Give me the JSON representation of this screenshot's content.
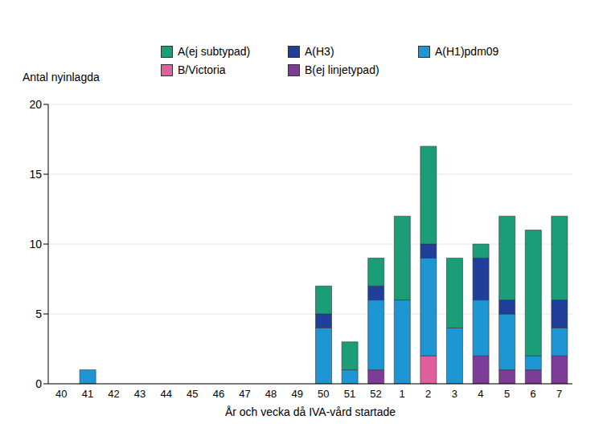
{
  "chart_data": {
    "type": "bar",
    "stacked": true,
    "x_label": "År och vecka då IVA-vård startade",
    "y_label": "Antal nyinlagda",
    "categories": [
      "40",
      "41",
      "42",
      "43",
      "44",
      "45",
      "46",
      "47",
      "48",
      "49",
      "50",
      "51",
      "52",
      "1",
      "2",
      "3",
      "4",
      "5",
      "6",
      "7"
    ],
    "series": [
      {
        "name": "A(ej subtypad)",
        "color": "#1b9e77",
        "values": [
          0,
          0,
          0,
          0,
          0,
          0,
          0,
          0,
          0,
          0,
          2,
          2,
          2,
          6,
          7,
          5,
          1,
          6,
          9,
          6
        ]
      },
      {
        "name": "A(H3)",
        "color": "#203f9a",
        "values": [
          0,
          0,
          0,
          0,
          0,
          0,
          0,
          0,
          0,
          0,
          1,
          0,
          1,
          0,
          1,
          0,
          3,
          1,
          0,
          2
        ]
      },
      {
        "name": "A(H1)pdm09",
        "color": "#1f96d4",
        "values": [
          0,
          1,
          0,
          0,
          0,
          0,
          0,
          0,
          0,
          0,
          4,
          1,
          5,
          6,
          7,
          4,
          4,
          4,
          1,
          2
        ]
      },
      {
        "name": "B/Victoria",
        "color": "#e0609e",
        "values": [
          0,
          0,
          0,
          0,
          0,
          0,
          0,
          0,
          0,
          0,
          0,
          0,
          0,
          0,
          2,
          0,
          0,
          0,
          0,
          0
        ]
      },
      {
        "name": "B(ej linjetypad)",
        "color": "#7d3c98",
        "values": [
          0,
          0,
          0,
          0,
          0,
          0,
          0,
          0,
          0,
          0,
          0,
          0,
          1,
          0,
          0,
          0,
          2,
          1,
          1,
          2
        ]
      }
    ],
    "ylim": [
      0,
      20
    ],
    "yticks": [
      0,
      5,
      10,
      15,
      20
    ],
    "grid": true,
    "legend": "top"
  }
}
